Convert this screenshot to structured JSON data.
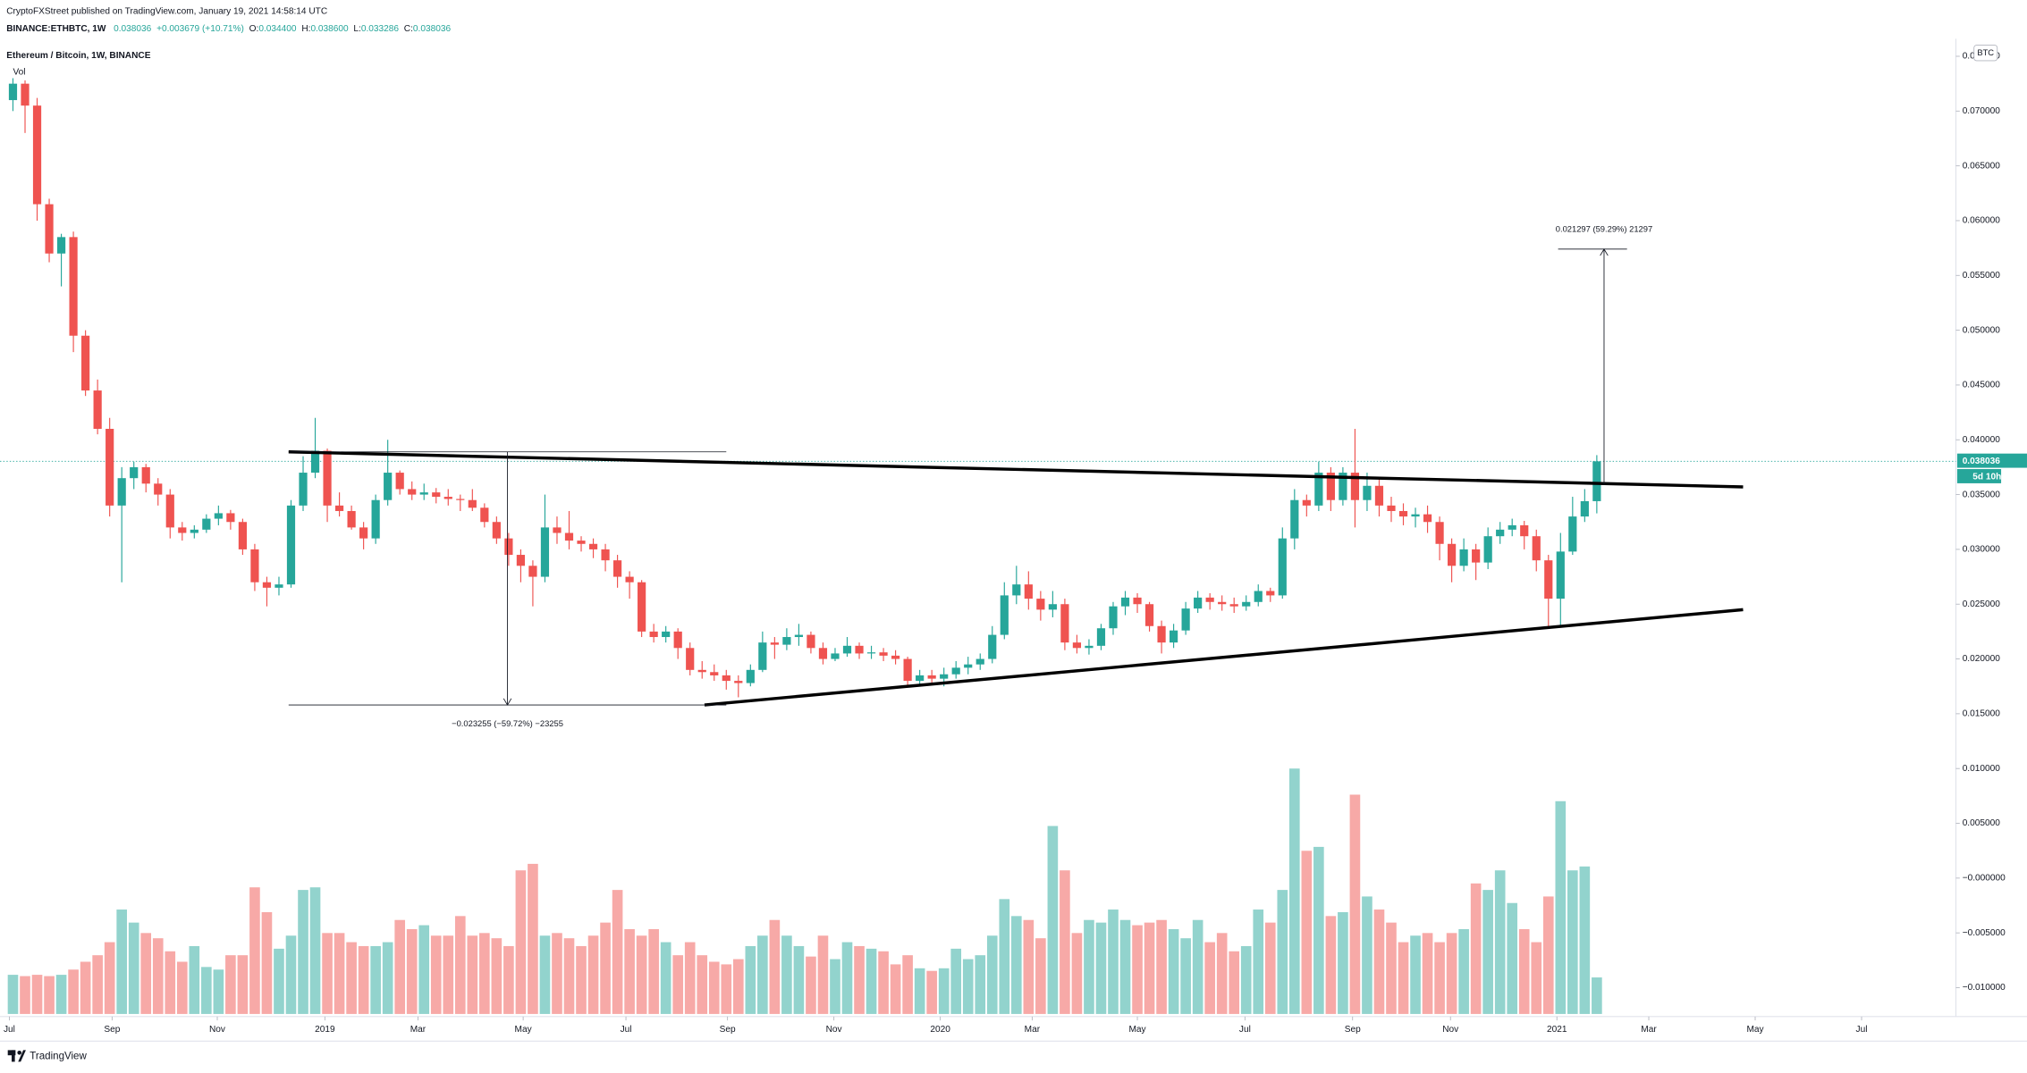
{
  "header": {
    "publisher": "CryptoFXStreet published on TradingView.com, January 19, 2021 14:58:14 UTC",
    "symbol": "BINANCE:ETHBTC, 1W",
    "last": "0.038036",
    "change": "+0.003679 (+10.71%)",
    "ohlc": [
      {
        "label": "O:",
        "value": "0.034400"
      },
      {
        "label": "H:",
        "value": "0.038600"
      },
      {
        "label": "L:",
        "value": "0.033286"
      },
      {
        "label": "C:",
        "value": "0.038036"
      }
    ]
  },
  "legend": {
    "title": "Ethereum / Bitcoin, 1W, BINANCE",
    "volume": "Vol"
  },
  "footer": {
    "brand": "TradingView"
  },
  "chart_data": {
    "type": "candlestick",
    "currency": "BTC",
    "up_color": "#26a69a",
    "down_color": "#ef5350",
    "volume_up_color": "#92d3cd",
    "volume_down_color": "#f7a9a7",
    "grid": false,
    "xlim": [
      -1.07,
      160.7
    ],
    "ylim": [
      -0.0124,
      0.0766
    ],
    "xticks": [
      {
        "value": -0.3,
        "label": "Jul"
      },
      {
        "value": 8.2,
        "label": "Sep"
      },
      {
        "value": 16.9,
        "label": "Nov"
      },
      {
        "value": 25.8,
        "label": "2019"
      },
      {
        "value": 33.5,
        "label": "Mar"
      },
      {
        "value": 42.2,
        "label": "May"
      },
      {
        "value": 50.7,
        "label": "Jul"
      },
      {
        "value": 59.1,
        "label": "Sep"
      },
      {
        "value": 67.9,
        "label": "Nov"
      },
      {
        "value": 76.7,
        "label": "2020"
      },
      {
        "value": 84.3,
        "label": "Mar"
      },
      {
        "value": 93,
        "label": "May"
      },
      {
        "value": 101.9,
        "label": "Jul"
      },
      {
        "value": 110.8,
        "label": "Sep"
      },
      {
        "value": 118.9,
        "label": "Nov"
      },
      {
        "value": 127.7,
        "label": "2021"
      },
      {
        "value": 135.3,
        "label": "Mar"
      },
      {
        "value": 144.1,
        "label": "May"
      },
      {
        "value": 152.9,
        "label": "Jul"
      }
    ],
    "yticks": [
      {
        "value": 0.075,
        "label": "0.075000"
      },
      {
        "value": 0.07,
        "label": "0.070000"
      },
      {
        "value": 0.065,
        "label": "0.065000"
      },
      {
        "value": 0.06,
        "label": "0.060000"
      },
      {
        "value": 0.055,
        "label": "0.055000"
      },
      {
        "value": 0.05,
        "label": "0.050000"
      },
      {
        "value": 0.045,
        "label": "0.045000"
      },
      {
        "value": 0.04,
        "label": "0.040000"
      },
      {
        "value": 0.035,
        "label": "0.035000"
      },
      {
        "value": 0.03,
        "label": "0.030000"
      },
      {
        "value": 0.025,
        "label": "0.025000"
      },
      {
        "value": 0.02,
        "label": "0.020000"
      },
      {
        "value": 0.015,
        "label": "0.015000"
      },
      {
        "value": 0.01,
        "label": "0.010000"
      },
      {
        "value": 0.005,
        "label": "0.005000"
      },
      {
        "value": 0,
        "label": "−0.000000"
      },
      {
        "value": -0.005,
        "label": "−0.005000"
      },
      {
        "value": -0.01,
        "label": "−0.010000"
      }
    ],
    "last_price": {
      "value": 0.038036,
      "label": "0.038036"
    },
    "countdown": "5d 10h",
    "trendlines": [
      {
        "x": [
          22.8,
          143.1
        ],
        "y": [
          0.0389,
          0.0357
        ]
      },
      {
        "x": [
          57.2,
          143.1
        ],
        "y": [
          0.0158,
          0.0245
        ]
      }
    ],
    "measures": [
      {
        "label": "−0.023255 (−59.72%) −23255",
        "x": 40.9,
        "from": 0.0389,
        "to": 0.0158,
        "span": [
          22.8,
          59.0
        ]
      },
      {
        "label": "0.021297 (59.29%) 21297",
        "x": 131.6,
        "from": 0.0359,
        "to": 0.0574,
        "cap": [
          127.8,
          133.5
        ]
      }
    ],
    "ohlc": [
      [
        0.071,
        0.073,
        0.07,
        0.0725
      ],
      [
        0.0725,
        0.0728,
        0.068,
        0.0705
      ],
      [
        0.0705,
        0.0712,
        0.06,
        0.0615
      ],
      [
        0.0615,
        0.062,
        0.0562,
        0.057
      ],
      [
        0.057,
        0.0588,
        0.054,
        0.0585
      ],
      [
        0.0585,
        0.059,
        0.048,
        0.0495
      ],
      [
        0.0495,
        0.05,
        0.044,
        0.0445
      ],
      [
        0.0445,
        0.0455,
        0.0405,
        0.041
      ],
      [
        0.041,
        0.042,
        0.033,
        0.034
      ],
      [
        0.034,
        0.0375,
        0.027,
        0.0365
      ],
      [
        0.0365,
        0.038,
        0.0355,
        0.0375
      ],
      [
        0.0375,
        0.0378,
        0.0352,
        0.036
      ],
      [
        0.036,
        0.0365,
        0.034,
        0.035
      ],
      [
        0.035,
        0.0355,
        0.031,
        0.032
      ],
      [
        0.032,
        0.0325,
        0.0308,
        0.0315
      ],
      [
        0.0315,
        0.0322,
        0.031,
        0.0318
      ],
      [
        0.0318,
        0.0332,
        0.0315,
        0.0328
      ],
      [
        0.0328,
        0.034,
        0.0322,
        0.0333
      ],
      [
        0.0333,
        0.0336,
        0.0318,
        0.0325
      ],
      [
        0.0325,
        0.0328,
        0.0295,
        0.03
      ],
      [
        0.03,
        0.0305,
        0.0262,
        0.027
      ],
      [
        0.027,
        0.0275,
        0.0248,
        0.0265
      ],
      [
        0.0265,
        0.0275,
        0.0258,
        0.0268
      ],
      [
        0.0268,
        0.0345,
        0.0265,
        0.034
      ],
      [
        0.034,
        0.0385,
        0.0335,
        0.037
      ],
      [
        0.037,
        0.042,
        0.0365,
        0.039
      ],
      [
        0.039,
        0.0392,
        0.0325,
        0.034
      ],
      [
        0.034,
        0.0352,
        0.033,
        0.0335
      ],
      [
        0.0335,
        0.034,
        0.0318,
        0.032
      ],
      [
        0.032,
        0.0325,
        0.03,
        0.031
      ],
      [
        0.031,
        0.035,
        0.0305,
        0.0345
      ],
      [
        0.0345,
        0.04,
        0.034,
        0.037
      ],
      [
        0.037,
        0.0372,
        0.035,
        0.0355
      ],
      [
        0.0355,
        0.0362,
        0.0345,
        0.035
      ],
      [
        0.035,
        0.036,
        0.0345,
        0.0352
      ],
      [
        0.0352,
        0.0356,
        0.0342,
        0.0348
      ],
      [
        0.0348,
        0.0355,
        0.034,
        0.0346
      ],
      [
        0.0346,
        0.035,
        0.0335,
        0.0345
      ],
      [
        0.0345,
        0.0355,
        0.0335,
        0.0338
      ],
      [
        0.0338,
        0.0342,
        0.032,
        0.0325
      ],
      [
        0.0325,
        0.033,
        0.0305,
        0.031
      ],
      [
        0.031,
        0.0315,
        0.0285,
        0.0295
      ],
      [
        0.0295,
        0.03,
        0.027,
        0.0285
      ],
      [
        0.0285,
        0.029,
        0.0248,
        0.0275
      ],
      [
        0.0275,
        0.035,
        0.027,
        0.032
      ],
      [
        0.032,
        0.033,
        0.0305,
        0.0315
      ],
      [
        0.0315,
        0.0335,
        0.03,
        0.0308
      ],
      [
        0.0308,
        0.0312,
        0.0298,
        0.0305
      ],
      [
        0.0305,
        0.031,
        0.0292,
        0.03
      ],
      [
        0.03,
        0.0305,
        0.028,
        0.029
      ],
      [
        0.029,
        0.0295,
        0.0265,
        0.0275
      ],
      [
        0.0275,
        0.028,
        0.0255,
        0.027
      ],
      [
        0.027,
        0.0272,
        0.022,
        0.0225
      ],
      [
        0.0225,
        0.0232,
        0.0215,
        0.022
      ],
      [
        0.022,
        0.023,
        0.0215,
        0.0225
      ],
      [
        0.0225,
        0.0228,
        0.02,
        0.021
      ],
      [
        0.021,
        0.0215,
        0.0185,
        0.019
      ],
      [
        0.019,
        0.0198,
        0.0182,
        0.0188
      ],
      [
        0.0188,
        0.0195,
        0.018,
        0.0185
      ],
      [
        0.0185,
        0.019,
        0.0172,
        0.018
      ],
      [
        0.018,
        0.0185,
        0.0165,
        0.0178
      ],
      [
        0.0178,
        0.0195,
        0.0175,
        0.019
      ],
      [
        0.019,
        0.0225,
        0.0188,
        0.0215
      ],
      [
        0.0215,
        0.022,
        0.02,
        0.0213
      ],
      [
        0.0213,
        0.0228,
        0.0208,
        0.022
      ],
      [
        0.022,
        0.0232,
        0.0212,
        0.0222
      ],
      [
        0.0222,
        0.0225,
        0.0205,
        0.021
      ],
      [
        0.021,
        0.0215,
        0.0195,
        0.02
      ],
      [
        0.02,
        0.021,
        0.0198,
        0.0205
      ],
      [
        0.0205,
        0.022,
        0.0202,
        0.0212
      ],
      [
        0.0212,
        0.0215,
        0.02,
        0.0205
      ],
      [
        0.0205,
        0.0212,
        0.02,
        0.0206
      ],
      [
        0.0206,
        0.021,
        0.0198,
        0.0203
      ],
      [
        0.0203,
        0.0208,
        0.0195,
        0.02
      ],
      [
        0.02,
        0.0202,
        0.0175,
        0.018
      ],
      [
        0.018,
        0.019,
        0.0175,
        0.0185
      ],
      [
        0.0185,
        0.019,
        0.0178,
        0.0182
      ],
      [
        0.0182,
        0.0192,
        0.0175,
        0.0186
      ],
      [
        0.0186,
        0.0198,
        0.0182,
        0.0192
      ],
      [
        0.0192,
        0.0202,
        0.0186,
        0.0195
      ],
      [
        0.0195,
        0.0205,
        0.019,
        0.02
      ],
      [
        0.02,
        0.023,
        0.0196,
        0.0222
      ],
      [
        0.0222,
        0.027,
        0.0218,
        0.0258
      ],
      [
        0.0258,
        0.0285,
        0.025,
        0.0268
      ],
      [
        0.0268,
        0.028,
        0.0245,
        0.0255
      ],
      [
        0.0255,
        0.0262,
        0.0235,
        0.0245
      ],
      [
        0.0245,
        0.0262,
        0.0238,
        0.025
      ],
      [
        0.025,
        0.0255,
        0.0208,
        0.0215
      ],
      [
        0.0215,
        0.0222,
        0.0205,
        0.021
      ],
      [
        0.021,
        0.0218,
        0.0204,
        0.0212
      ],
      [
        0.0212,
        0.0232,
        0.0208,
        0.0228
      ],
      [
        0.0228,
        0.0252,
        0.0222,
        0.0248
      ],
      [
        0.0248,
        0.0262,
        0.024,
        0.0256
      ],
      [
        0.0256,
        0.026,
        0.0242,
        0.025
      ],
      [
        0.025,
        0.0252,
        0.0225,
        0.023
      ],
      [
        0.023,
        0.0235,
        0.0205,
        0.0215
      ],
      [
        0.0215,
        0.0232,
        0.021,
        0.0226
      ],
      [
        0.0226,
        0.0252,
        0.0222,
        0.0246
      ],
      [
        0.0246,
        0.0262,
        0.0242,
        0.0256
      ],
      [
        0.0256,
        0.026,
        0.0245,
        0.0252
      ],
      [
        0.0252,
        0.0258,
        0.0244,
        0.025
      ],
      [
        0.025,
        0.0256,
        0.0242,
        0.0248
      ],
      [
        0.0248,
        0.0258,
        0.0244,
        0.0252
      ],
      [
        0.0252,
        0.0268,
        0.0248,
        0.0262
      ],
      [
        0.0262,
        0.0265,
        0.0252,
        0.0258
      ],
      [
        0.0258,
        0.032,
        0.0255,
        0.031
      ],
      [
        0.031,
        0.0355,
        0.03,
        0.0345
      ],
      [
        0.0345,
        0.035,
        0.033,
        0.034
      ],
      [
        0.034,
        0.038,
        0.0335,
        0.037
      ],
      [
        0.037,
        0.0375,
        0.0335,
        0.0345
      ],
      [
        0.0345,
        0.0375,
        0.034,
        0.037
      ],
      [
        0.037,
        0.041,
        0.032,
        0.0345
      ],
      [
        0.0345,
        0.037,
        0.0335,
        0.0358
      ],
      [
        0.0358,
        0.0365,
        0.033,
        0.034
      ],
      [
        0.034,
        0.0348,
        0.0325,
        0.0335
      ],
      [
        0.0335,
        0.0342,
        0.0322,
        0.033
      ],
      [
        0.033,
        0.0338,
        0.032,
        0.0332
      ],
      [
        0.0332,
        0.034,
        0.0315,
        0.0325
      ],
      [
        0.0325,
        0.033,
        0.029,
        0.0305
      ],
      [
        0.0305,
        0.031,
        0.027,
        0.0285
      ],
      [
        0.0285,
        0.031,
        0.028,
        0.03
      ],
      [
        0.03,
        0.0305,
        0.0272,
        0.0288
      ],
      [
        0.0288,
        0.032,
        0.0282,
        0.0312
      ],
      [
        0.0312,
        0.0325,
        0.0305,
        0.0318
      ],
      [
        0.0318,
        0.0328,
        0.0312,
        0.0322
      ],
      [
        0.0322,
        0.0326,
        0.03,
        0.0312
      ],
      [
        0.0312,
        0.0318,
        0.028,
        0.029
      ],
      [
        0.029,
        0.0295,
        0.0228,
        0.0255
      ],
      [
        0.0255,
        0.0315,
        0.023,
        0.0298
      ],
      [
        0.0298,
        0.0348,
        0.0295,
        0.033
      ],
      [
        0.033,
        0.0355,
        0.0325,
        0.0344
      ],
      [
        0.0344,
        0.0386,
        0.033286,
        0.038036
      ]
    ],
    "volume": [
      30,
      29,
      30,
      29,
      30,
      34,
      40,
      45,
      55,
      80,
      70,
      62,
      58,
      48,
      40,
      52,
      36,
      34,
      45,
      45,
      97,
      78,
      50,
      60,
      95,
      97,
      62,
      62,
      55,
      52,
      52,
      55,
      72,
      65,
      68,
      60,
      60,
      75,
      60,
      62,
      58,
      52,
      110,
      115,
      60,
      62,
      58,
      52,
      60,
      70,
      95,
      65,
      60,
      65,
      55,
      45,
      55,
      45,
      40,
      38,
      42,
      52,
      60,
      72,
      60,
      52,
      44,
      60,
      42,
      55,
      52,
      50,
      48,
      38,
      45,
      35,
      33,
      35,
      50,
      42,
      45,
      60,
      88,
      75,
      72,
      58,
      144,
      110,
      62,
      72,
      70,
      80,
      72,
      68,
      70,
      72,
      65,
      58,
      72,
      55,
      62,
      48,
      52,
      80,
      70,
      95,
      188,
      125,
      128,
      75,
      78,
      168,
      90,
      80,
      70,
      55,
      60,
      62,
      55,
      62,
      65,
      100,
      95,
      110,
      85,
      65,
      55,
      90,
      163,
      110,
      113,
      28
    ]
  }
}
